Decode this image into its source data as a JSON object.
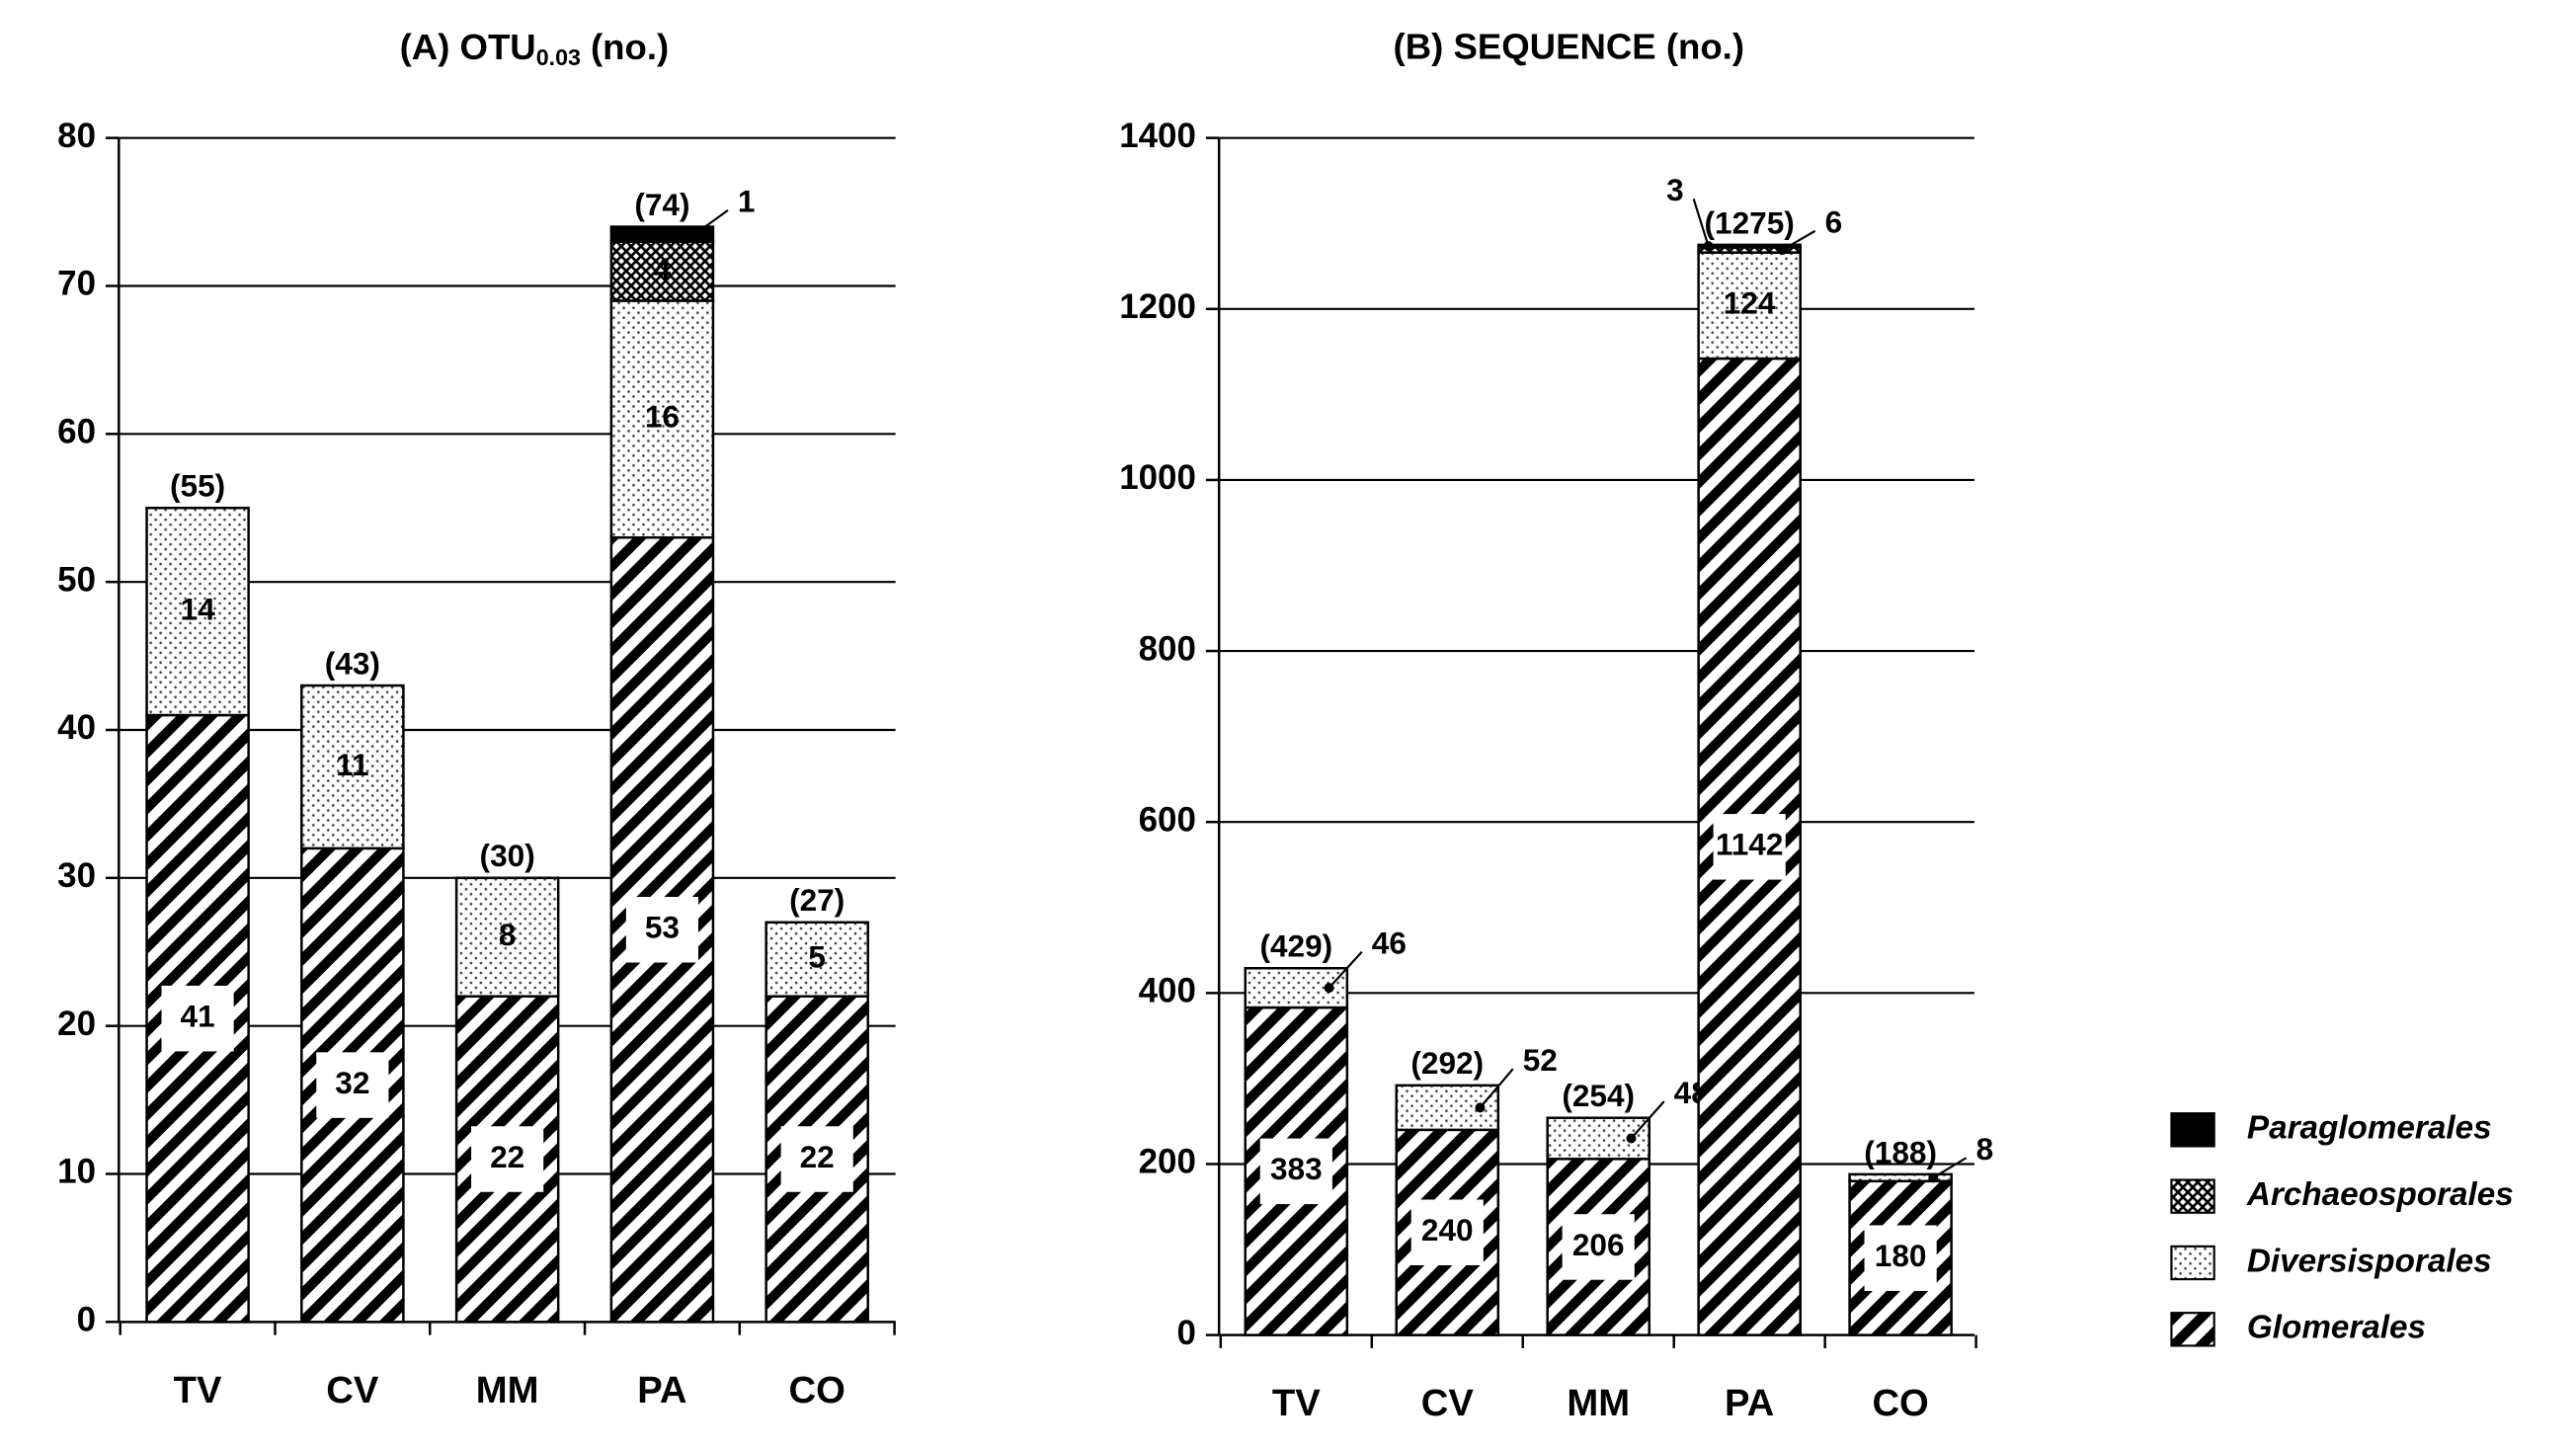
{
  "chart_data": [
    {
      "type": "stacked-bar",
      "title": [
        "(A) OTU",
        "0.03",
        "(no.)"
      ],
      "categories": [
        "TV",
        "CV",
        "MM",
        "PA",
        "CO"
      ],
      "series": [
        {
          "pattern": "hatch",
          "color": "#000000",
          "values": [
            41,
            32,
            22,
            53,
            22
          ]
        },
        {
          "pattern": "dots",
          "color": "#000000",
          "values": [
            14,
            11,
            8,
            16,
            5
          ]
        },
        {
          "pattern": "crosshatch",
          "color": "#000000",
          "values": [
            null,
            null,
            null,
            4,
            null
          ]
        },
        {
          "pattern": "solid",
          "color": "#000000",
          "values": [
            null,
            null,
            null,
            1,
            null
          ]
        }
      ],
      "totals": {
        "values": [
          55,
          43,
          30,
          74,
          27
        ],
        "value_labels": [
          "(55)",
          "(43)",
          "(30)",
          "(74)",
          "(27)"
        ]
      },
      "ylim": [
        0,
        80
      ],
      "yticks": [
        0,
        10,
        20,
        30,
        40,
        50,
        60,
        70,
        80
      ],
      "grid": true
    },
    {
      "type": "stacked-bar",
      "title": "(B) SEQUENCE (no.)",
      "categories": [
        "TV",
        "CV",
        "MM",
        "PA",
        "CO"
      ],
      "series": [
        {
          "name": "Glomerales",
          "pattern": "hatch",
          "color": "#000000",
          "values": [
            383,
            240,
            206,
            1142,
            180
          ]
        },
        {
          "name": "Diversisporales",
          "pattern": "dots",
          "color": "#000000",
          "values": [
            46,
            52,
            48,
            124,
            8
          ]
        },
        {
          "name": "Archaeosporales",
          "pattern": "crosshatch",
          "color": "#000000",
          "values": [
            null,
            null,
            null,
            6,
            null
          ]
        },
        {
          "name": "Paraglomerales",
          "pattern": "solid",
          "color": "#000000",
          "values": [
            null,
            null,
            null,
            3,
            null
          ]
        }
      ],
      "totals": {
        "values": [
          429,
          292,
          254,
          1275,
          188
        ],
        "value_labels": [
          "(429)",
          "(292)",
          "(254)",
          "(1275)",
          "(188)"
        ]
      },
      "ylim": [
        0,
        1400
      ],
      "yticks": [
        0,
        200,
        400,
        600,
        800,
        1000,
        1200,
        1400
      ],
      "grid": true
    }
  ]
}
